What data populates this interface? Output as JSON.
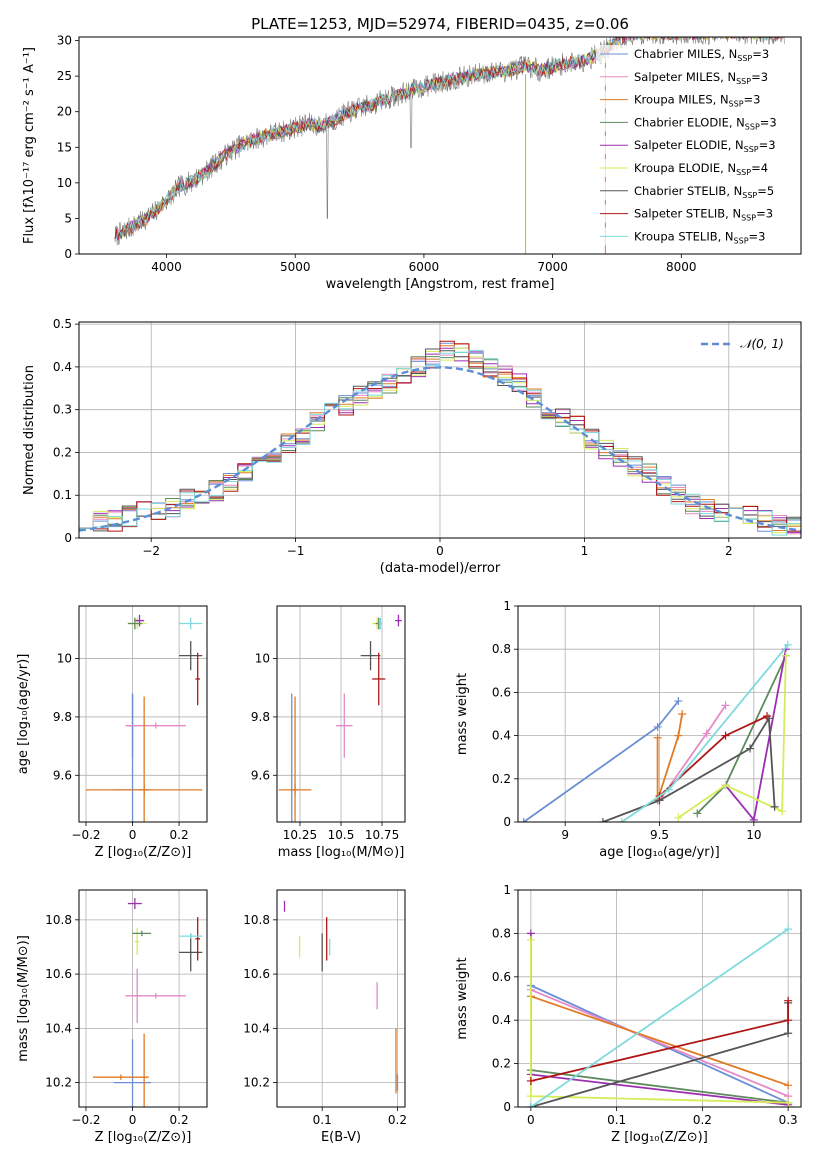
{
  "figure": {
    "title": "PLATE=1253, MJD=52974, FIBERID=0435, z=0.06",
    "series_colors": [
      "#6a8fd4",
      "#e58ac7",
      "#e07b25",
      "#5e8a5e",
      "#9b2fb0",
      "#d6ec5a",
      "#555555",
      "#b01515",
      "#7fd9dd"
    ]
  },
  "chart_data": [
    {
      "id": "spectrum",
      "type": "line",
      "title": "PLATE=1253, MJD=52974, FIBERID=0435, z=0.06",
      "xlabel": "wavelength [Angstrom, rest frame]",
      "ylabel": "Flux [fλ10⁻¹⁷ erg cm⁻² s⁻¹ A⁻¹]",
      "xlim": [
        3320,
        8930
      ],
      "ylim": [
        0,
        30.5
      ],
      "xticks": [
        4000,
        5000,
        6000,
        7000,
        8000
      ],
      "yticks": [
        0,
        5,
        10,
        15,
        20,
        25,
        30
      ],
      "grid": false,
      "legend_position": "right",
      "data_trend": {
        "x": [
          3600,
          3700,
          3800,
          3900,
          4000,
          4100,
          4200,
          4300,
          4400,
          4500,
          4600,
          4700,
          4800,
          4900,
          5000,
          5100,
          5200,
          5300,
          5400,
          5500,
          5600,
          5700,
          5800,
          5900,
          6000,
          6100,
          6200,
          6300,
          6400,
          6500,
          6600,
          6700,
          6800,
          6900,
          7000,
          7100,
          7200,
          7300,
          7400,
          7500,
          7600,
          7700,
          7800,
          7900,
          8000,
          8100,
          8200,
          8300,
          8400,
          8500,
          8600,
          8700,
          8800
        ],
        "y": [
          2.5,
          3.5,
          4.5,
          5.8,
          7.5,
          9.5,
          10.2,
          11.5,
          13.0,
          14.5,
          15.5,
          16.2,
          16.8,
          17.2,
          17.8,
          18.3,
          18.0,
          18.8,
          19.8,
          20.5,
          21.0,
          21.8,
          22.3,
          23.0,
          23.5,
          24.0,
          24.4,
          24.8,
          25.2,
          25.5,
          25.6,
          26.0,
          26.5,
          25.8,
          26.3,
          26.8,
          27.0,
          27.6,
          28.5,
          30.0,
          30.8,
          31.0,
          31.0,
          31.0,
          31.0,
          31.0,
          31.0,
          31.0,
          31.0,
          31.0,
          31.0,
          31.0,
          31.0
        ]
      },
      "series": [
        {
          "name": "Chabrier MILES, N$_{SSP}$=3"
        },
        {
          "name": "Salpeter MILES, N$_{SSP}$=3"
        },
        {
          "name": "Kroupa MILES, N$_{SSP}$=3"
        },
        {
          "name": "Chabrier ELODIE, N$_{SSP}$=3"
        },
        {
          "name": "Salpeter ELODIE, N$_{SSP}$=3"
        },
        {
          "name": "Kroupa ELODIE, N$_{SSP}$=4"
        },
        {
          "name": "Chabrier STELIB, N$_{SSP}$=5"
        },
        {
          "name": "Salpeter STELIB, N$_{SSP}$=3"
        },
        {
          "name": "Kroupa STELIB, N$_{SSP}$=3"
        }
      ]
    },
    {
      "id": "residuals",
      "type": "histogram",
      "xlabel": "(data-model)/error",
      "ylabel": "Normed distribution",
      "xlim": [
        -2.5,
        2.5
      ],
      "ylim": [
        0,
        0.505
      ],
      "xticks": [
        -2,
        -1,
        0,
        1,
        2
      ],
      "yticks": [
        0.0,
        0.1,
        0.2,
        0.3,
        0.4,
        0.5
      ],
      "grid": true,
      "legend_position": "top-right",
      "normal_curve_label": "$\\mathcal{N}(0,1)$",
      "bin_width": 0.1,
      "bin_start": -2.5,
      "bar_values_approx": [
        0.03,
        0.04,
        0.04,
        0.05,
        0.06,
        0.06,
        0.07,
        0.09,
        0.1,
        0.11,
        0.13,
        0.15,
        0.18,
        0.2,
        0.22,
        0.24,
        0.27,
        0.29,
        0.31,
        0.33,
        0.34,
        0.36,
        0.38,
        0.4,
        0.42,
        0.44,
        0.43,
        0.42,
        0.4,
        0.38,
        0.36,
        0.33,
        0.3,
        0.28,
        0.26,
        0.23,
        0.21,
        0.19,
        0.17,
        0.15,
        0.12,
        0.1,
        0.08,
        0.07,
        0.06,
        0.05,
        0.05,
        0.04,
        0.03,
        0.03
      ]
    },
    {
      "id": "age-vs-Z",
      "type": "errorbar",
      "xlabel": "Z [log₁₀(Z/Z⊙)]",
      "ylabel": "age  [log₁₀(age/yr)]",
      "xlim": [
        -0.23,
        0.32
      ],
      "ylim": [
        9.44,
        10.18
      ],
      "xticks": [
        -0.2,
        0.0,
        0.2
      ],
      "yticks": [
        9.6,
        9.8,
        10.0
      ],
      "grid": true,
      "points": [
        {
          "x": 0.0,
          "y": 9.55,
          "xerr": 0.08,
          "yerr": 0.33
        },
        {
          "x": 0.0,
          "y": 9.77,
          "xerr": 0.02,
          "yerr": 0.11
        },
        {
          "x": 0.05,
          "y": 9.55,
          "xerr": 0.25,
          "yerr": 0.02
        },
        {
          "x": 0.1,
          "y": 9.77,
          "xerr": 0.13,
          "yerr": 0.01
        },
        {
          "x": 0.05,
          "y": 9.55,
          "xerr": 0.02,
          "yerr": 0.32
        },
        {
          "x": 0.02,
          "y": 10.12,
          "xerr": 0.04,
          "yerr": 0.02
        },
        {
          "x": 0.03,
          "y": 10.13,
          "xerr": 0.02,
          "yerr": 0.02
        },
        {
          "x": 0.01,
          "y": 10.12,
          "xerr": 0.03,
          "yerr": 0.02
        },
        {
          "x": 0.25,
          "y": 10.01,
          "xerr": 0.05,
          "yerr": 0.05
        },
        {
          "x": 0.28,
          "y": 9.93,
          "xerr": 0.01,
          "yerr": 0.09
        },
        {
          "x": 0.25,
          "y": 10.12,
          "xerr": 0.05,
          "yerr": 0.02
        }
      ]
    },
    {
      "id": "age-vs-mass",
      "type": "errorbar",
      "xlabel": "mass [log₁₀(M/M⊙)]",
      "xlim": [
        10.11,
        10.89
      ],
      "ylim": [
        9.44,
        10.18
      ],
      "xticks": [
        10.25,
        10.5,
        10.75
      ],
      "yticks": [
        9.6,
        9.8,
        10.0
      ],
      "grid": true,
      "points": [
        {
          "x": 10.2,
          "y": 9.55,
          "xerr": 0.01,
          "yerr": 0.33
        },
        {
          "x": 10.22,
          "y": 9.55,
          "xerr": 0.1,
          "yerr": 0.02
        },
        {
          "x": 10.22,
          "y": 9.55,
          "xerr": 0.02,
          "yerr": 0.32
        },
        {
          "x": 10.52,
          "y": 9.77,
          "xerr": 0.05,
          "yerr": 0.11
        },
        {
          "x": 10.72,
          "y": 10.12,
          "xerr": 0.03,
          "yerr": 0.02
        },
        {
          "x": 10.73,
          "y": 10.12,
          "xerr": 0.02,
          "yerr": 0.02
        },
        {
          "x": 10.68,
          "y": 10.01,
          "xerr": 0.06,
          "yerr": 0.05
        },
        {
          "x": 10.73,
          "y": 9.93,
          "xerr": 0.04,
          "yerr": 0.09
        },
        {
          "x": 10.74,
          "y": 10.12,
          "xerr": 0.01,
          "yerr": 0.02
        },
        {
          "x": 10.85,
          "y": 10.13,
          "xerr": 0.02,
          "yerr": 0.02
        }
      ]
    },
    {
      "id": "weight-vs-age",
      "type": "line",
      "xlabel": "age  [log₁₀(age/yr)]",
      "ylabel": "mass weight",
      "xlim": [
        8.75,
        10.25
      ],
      "ylim": [
        0,
        1.0
      ],
      "xticks": [
        9.0,
        9.5,
        10.0
      ],
      "yticks": [
        0.0,
        0.2,
        0.4,
        0.6,
        0.8,
        1.0
      ],
      "grid": true,
      "series_points": [
        {
          "x": [
            8.78,
            9.49,
            9.6
          ],
          "y": [
            0.0,
            0.44,
            0.56
          ]
        },
        {
          "x": [
            9.5,
            9.75,
            9.85
          ],
          "y": [
            0.1,
            0.41,
            0.54
          ]
        },
        {
          "x": [
            9.49,
            9.49,
            9.6,
            9.62
          ],
          "y": [
            0.39,
            0.1,
            0.4,
            0.5
          ]
        },
        {
          "x": [
            9.7,
            9.85,
            10.17
          ],
          "y": [
            0.04,
            0.17,
            0.77
          ]
        },
        {
          "x": [
            9.85,
            10.0,
            10.17
          ],
          "y": [
            0.17,
            0.01,
            0.8
          ]
        },
        {
          "x": [
            9.6,
            9.85,
            10.15,
            10.17
          ],
          "y": [
            0.02,
            0.17,
            0.05,
            0.77
          ]
        },
        {
          "x": [
            9.2,
            9.5,
            9.98,
            10.08,
            10.11
          ],
          "y": [
            0.0,
            0.1,
            0.34,
            0.48,
            0.07
          ]
        },
        {
          "x": [
            9.5,
            9.85,
            10.07
          ],
          "y": [
            0.12,
            0.4,
            0.49
          ]
        },
        {
          "x": [
            9.3,
            9.55,
            10.18
          ],
          "y": [
            0.0,
            0.15,
            0.82
          ]
        }
      ]
    },
    {
      "id": "mass-vs-Z",
      "type": "errorbar",
      "xlabel": "Z [log₁₀(Z/Z⊙)]",
      "ylabel": "mass [log₁₀(M/M⊙)]",
      "xlim": [
        -0.23,
        0.32
      ],
      "ylim": [
        10.11,
        10.91
      ],
      "xticks": [
        -0.2,
        0.0,
        0.2
      ],
      "yticks": [
        10.2,
        10.4,
        10.6,
        10.8
      ],
      "grid": true,
      "points": [
        {
          "x": 0.0,
          "y": 10.2,
          "xerr": 0.08,
          "yerr": 0.16
        },
        {
          "x": -0.05,
          "y": 10.22,
          "xerr": 0.12,
          "yerr": 0.01
        },
        {
          "x": 0.05,
          "y": 10.22,
          "xerr": 0.01,
          "yerr": 0.16
        },
        {
          "x": 0.1,
          "y": 10.52,
          "xerr": 0.13,
          "yerr": 0.01
        },
        {
          "x": 0.02,
          "y": 10.52,
          "xerr": 0.01,
          "yerr": 0.1
        },
        {
          "x": 0.02,
          "y": 10.72,
          "xerr": 0.01,
          "yerr": 0.05
        },
        {
          "x": 0.04,
          "y": 10.75,
          "xerr": 0.04,
          "yerr": 0.01
        },
        {
          "x": 0.01,
          "y": 10.86,
          "xerr": 0.03,
          "yerr": 0.02
        },
        {
          "x": 0.25,
          "y": 10.68,
          "xerr": 0.05,
          "yerr": 0.07
        },
        {
          "x": 0.28,
          "y": 10.73,
          "xerr": 0.01,
          "yerr": 0.08
        },
        {
          "x": 0.25,
          "y": 10.74,
          "xerr": 0.05,
          "yerr": 0.01
        }
      ]
    },
    {
      "id": "mass-vs-ebv",
      "type": "errorbar",
      "xlabel": "E(B-V)",
      "xlim": [
        0.04,
        0.21
      ],
      "ylim": [
        10.11,
        10.91
      ],
      "xticks": [
        0.1,
        0.2
      ],
      "yticks": [
        10.2,
        10.4,
        10.6,
        10.8
      ],
      "grid": true,
      "points": [
        {
          "x": 0.05,
          "y": 10.85,
          "xerr": 0.0,
          "yerr": 0.02
        },
        {
          "x": 0.07,
          "y": 10.7,
          "xerr": 0.0,
          "yerr": 0.04
        },
        {
          "x": 0.1,
          "y": 10.68,
          "xerr": 0.0,
          "yerr": 0.07
        },
        {
          "x": 0.106,
          "y": 10.73,
          "xerr": 0.0,
          "yerr": 0.08
        },
        {
          "x": 0.11,
          "y": 10.7,
          "xerr": 0.0,
          "yerr": 0.03
        },
        {
          "x": 0.173,
          "y": 10.52,
          "xerr": 0.0,
          "yerr": 0.05
        },
        {
          "x": 0.198,
          "y": 10.28,
          "xerr": 0.0,
          "yerr": 0.12
        },
        {
          "x": 0.2,
          "y": 10.2,
          "xerr": 0.0,
          "yerr": 0.03
        }
      ]
    },
    {
      "id": "weight-vs-Z",
      "type": "line",
      "xlabel": "Z [log₁₀(Z/Z⊙)]",
      "ylabel": "mass weight",
      "xlim": [
        -0.015,
        0.315
      ],
      "ylim": [
        0,
        1.0
      ],
      "xticks": [
        0.0,
        0.1,
        0.2,
        0.3
      ],
      "yticks": [
        0.0,
        0.2,
        0.4,
        0.6,
        0.8,
        1.0
      ],
      "grid": true,
      "series_points": [
        {
          "x": [
            0.0,
            0.3
          ],
          "y": [
            0.56,
            0.02
          ]
        },
        {
          "x": [
            0.0,
            0.3
          ],
          "y": [
            0.54,
            0.05
          ]
        },
        {
          "x": [
            0.0,
            0.3
          ],
          "y": [
            0.51,
            0.1
          ]
        },
        {
          "x": [
            0.0,
            0.3
          ],
          "y": [
            0.17,
            0.02
          ]
        },
        {
          "x": [
            0.0,
            0.0,
            0.3
          ],
          "y": [
            0.8,
            0.15,
            0.01
          ]
        },
        {
          "x": [
            0.0,
            0.0,
            0.3
          ],
          "y": [
            0.77,
            0.05,
            0.02
          ]
        },
        {
          "x": [
            0.0,
            0.3,
            0.3
          ],
          "y": [
            0.0,
            0.34,
            0.48
          ]
        },
        {
          "x": [
            0.0,
            0.3,
            0.3
          ],
          "y": [
            0.12,
            0.4,
            0.49
          ]
        },
        {
          "x": [
            0.0,
            0.3
          ],
          "y": [
            0.0,
            0.82
          ]
        }
      ]
    }
  ]
}
